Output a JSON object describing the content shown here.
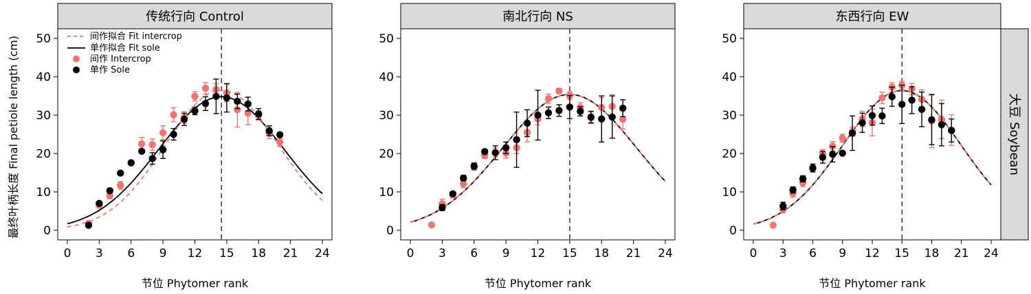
{
  "figure": {
    "ylabel": "最终叶柄长度 Final petiole length (cm)",
    "xlabel": "节位 Phytomer rank",
    "row_strip": "大豆 Soybean"
  },
  "legend": {
    "fit_intercrop": "间作拟合 Fit intercrop",
    "fit_sole": "单作拟合 Fit sole",
    "intercrop": "间作 Intercrop",
    "sole": "单作 Sole"
  },
  "colors": {
    "intercrop": "#F07470",
    "sole": "#000000",
    "strip_fill": "#D9D9D9"
  },
  "chart_data": [
    {
      "type": "scatter",
      "title": "传统行向 Control",
      "xlim": [
        0,
        24
      ],
      "ylim": [
        0,
        50
      ],
      "xticks": [
        0,
        3,
        6,
        9,
        12,
        15,
        18,
        21,
        24
      ],
      "yticks": [
        0,
        10,
        20,
        30,
        40,
        50
      ],
      "vline": 14.5,
      "fit_sole": {
        "peak_x": 14.5,
        "peak_y": 34.8,
        "sd_left": 5.9,
        "sd_right": 5.9,
        "x_range": [
          0,
          24
        ]
      },
      "fit_intercrop": {
        "peak_x": 14.5,
        "peak_y": 36.5,
        "sd_left": 5.3,
        "sd_right": 5.4,
        "x_range": [
          0,
          24
        ]
      },
      "series": [
        {
          "name": "间作 Intercrop",
          "x": [
            2,
            3,
            4,
            5,
            6,
            7,
            8,
            9,
            10,
            11,
            12,
            13,
            14,
            15,
            16,
            17,
            18,
            19,
            20
          ],
          "y": [
            1.8,
            6.5,
            9.0,
            11.7,
            17.5,
            22.5,
            22.3,
            25.4,
            30.1,
            29.4,
            34.9,
            37.0,
            36.7,
            35.8,
            31.4,
            30.5,
            29.9,
            25.3,
            23.0
          ],
          "err": [
            0,
            0,
            0.8,
            1.0,
            0,
            1.7,
            1.5,
            1.8,
            1.8,
            1.5,
            1.2,
            1.5,
            1.5,
            2.3,
            4.5,
            3.0,
            1.2,
            1.4,
            1.0
          ]
        },
        {
          "name": "单作 Sole",
          "x": [
            2,
            3,
            4,
            5,
            6,
            7,
            8,
            9,
            10,
            11,
            12,
            13,
            14,
            15,
            16,
            17,
            18,
            19,
            20
          ],
          "y": [
            1.3,
            7.0,
            10.3,
            14.9,
            17.6,
            20.6,
            18.7,
            21.0,
            25.0,
            28.9,
            31.1,
            33.0,
            34.9,
            34.5,
            33.6,
            32.9,
            30.3,
            25.9,
            24.9
          ],
          "err": [
            0,
            0,
            0.5,
            0,
            0,
            0,
            1.5,
            2.3,
            1.5,
            1.6,
            1.0,
            1.8,
            4.5,
            3.7,
            1.9,
            1.8,
            1.4,
            1.3,
            0
          ]
        }
      ]
    },
    {
      "type": "scatter",
      "title": "南北行向 NS",
      "xlim": [
        0,
        24
      ],
      "ylim": [
        0,
        50
      ],
      "xticks": [
        0,
        3,
        6,
        9,
        12,
        15,
        18,
        21,
        24
      ],
      "yticks": [
        0,
        10,
        20,
        30,
        40,
        50
      ],
      "vline": 15,
      "fit_sole": {
        "peak_x": 15,
        "peak_y": 35.4,
        "sd_left": 6.3,
        "sd_right": 6.3,
        "x_range": [
          0,
          24
        ]
      },
      "fit_intercrop": {
        "peak_x": 15,
        "peak_y": 35.4,
        "sd_left": 6.3,
        "sd_right": 6.3,
        "x_range": [
          0,
          24
        ]
      },
      "series": [
        {
          "name": "间作 Intercrop",
          "x": [
            2,
            3,
            4,
            5,
            6,
            7,
            8,
            9,
            10,
            11,
            12,
            13,
            14,
            15,
            16,
            17,
            18,
            19,
            20
          ],
          "y": [
            1.4,
            6.9,
            9.2,
            12.1,
            16.6,
            19.5,
            20.3,
            20.1,
            21.5,
            25.5,
            29.0,
            34.3,
            36.3,
            35.1,
            32.0,
            29.3,
            32.0,
            32.3,
            28.9
          ],
          "err": [
            0,
            1.2,
            0.8,
            1.0,
            1.0,
            0.8,
            1.2,
            1.3,
            1.5,
            2.5,
            1.5,
            1.2,
            0.7,
            1.0,
            1.2,
            1.5,
            2.5,
            3.0,
            2.5
          ]
        },
        {
          "name": "单作 Sole",
          "x": [
            3,
            4,
            5,
            6,
            7,
            8,
            9,
            10,
            11,
            12,
            13,
            14,
            15,
            16,
            17,
            18,
            19,
            20
          ],
          "y": [
            5.9,
            9.5,
            13.6,
            16.7,
            20.5,
            20.2,
            21.5,
            23.6,
            27.9,
            30.0,
            30.6,
            31.2,
            32.1,
            31.0,
            29.5,
            29.0,
            29.5,
            31.8
          ],
          "err": [
            0.8,
            0.5,
            0.7,
            0.8,
            0.5,
            1.8,
            1.5,
            7.2,
            3.5,
            6.5,
            1.5,
            1.5,
            3.0,
            1.2,
            1.5,
            6.0,
            5.5,
            2.2
          ]
        }
      ]
    },
    {
      "type": "scatter",
      "title": "东西行向 EW",
      "xlim": [
        0,
        24
      ],
      "ylim": [
        0,
        50
      ],
      "xticks": [
        0,
        3,
        6,
        9,
        12,
        15,
        18,
        21,
        24
      ],
      "yticks": [
        0,
        10,
        20,
        30,
        40,
        50
      ],
      "vline": 15,
      "fit_sole": {
        "peak_x": 15,
        "peak_y": 36.4,
        "sd_left": 6.0,
        "sd_right": 6.0,
        "x_range": [
          0,
          24
        ]
      },
      "fit_intercrop": {
        "peak_x": 15,
        "peak_y": 36.4,
        "sd_left": 6.0,
        "sd_right": 6.0,
        "x_range": [
          0,
          24
        ]
      },
      "series": [
        {
          "name": "间作 Intercrop",
          "x": [
            2,
            3,
            4,
            5,
            6,
            7,
            8,
            9,
            10,
            11,
            12,
            13,
            14,
            15,
            16,
            17,
            18,
            19,
            20
          ],
          "y": [
            1.3,
            5.5,
            9.6,
            12.4,
            16.3,
            20.0,
            21.9,
            24.0,
            25.7,
            29.0,
            28.1,
            34.5,
            37.3,
            37.8,
            36.8,
            34.1,
            28.5,
            28.9,
            26.1
          ],
          "err": [
            0,
            1.0,
            1.0,
            1.0,
            1.0,
            1.0,
            1.2,
            1.0,
            1.2,
            2.0,
            3.5,
            1.5,
            1.2,
            1.0,
            1.5,
            2.5,
            7.0,
            5.0,
            4.0
          ]
        },
        {
          "name": "单作 Sole",
          "x": [
            3,
            4,
            5,
            6,
            7,
            8,
            9,
            10,
            11,
            12,
            13,
            14,
            15,
            16,
            17,
            18,
            19,
            20
          ],
          "y": [
            6.3,
            10.5,
            13.4,
            16.2,
            19.0,
            19.8,
            20.1,
            25.3,
            28.0,
            29.9,
            29.8,
            34.8,
            32.8,
            33.9,
            31.5,
            28.8,
            27.5,
            26.0
          ],
          "err": [
            1.0,
            0.8,
            0.8,
            1.0,
            1.5,
            2.0,
            0,
            4.5,
            2.5,
            2.5,
            2.0,
            2.5,
            5.0,
            3.5,
            4.5,
            6.5,
            5.5,
            3.0
          ]
        }
      ]
    }
  ]
}
